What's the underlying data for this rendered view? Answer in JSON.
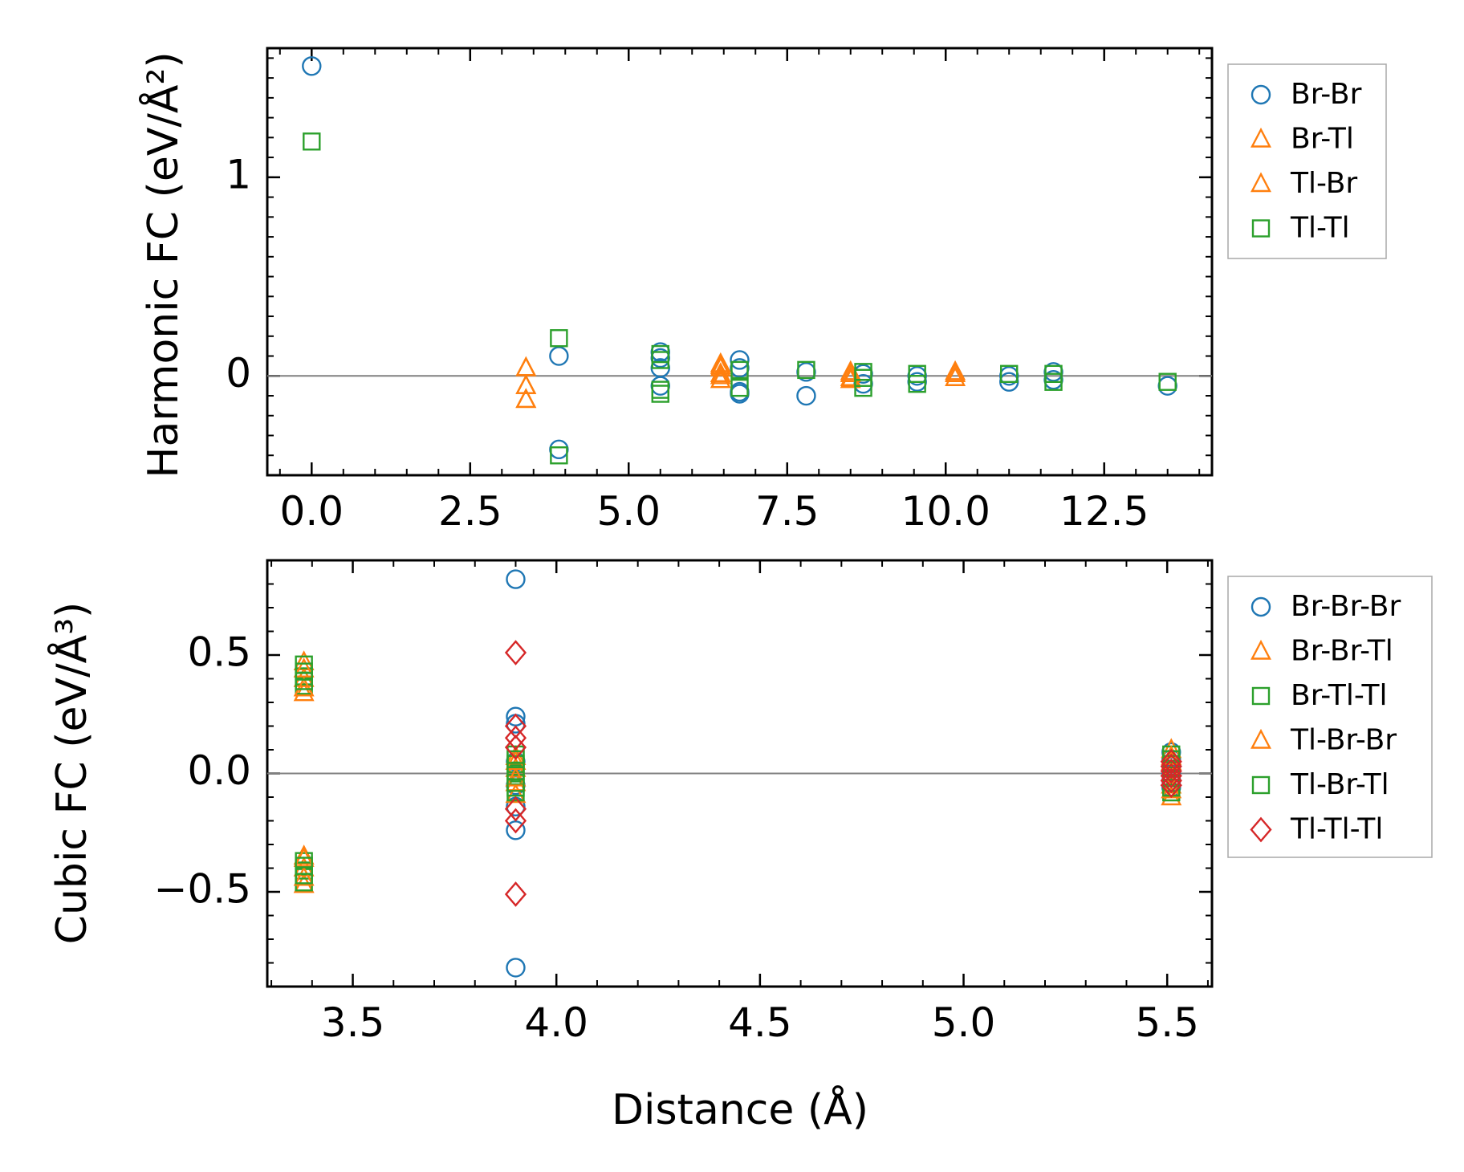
{
  "chart_data": [
    {
      "type": "scatter",
      "panel": "top",
      "ylabel": "Harmonic FC (eV/Å²)",
      "xlabel": "",
      "xlim": [
        -0.7,
        14.2
      ],
      "ylim": [
        -0.5,
        1.65
      ],
      "xticks": [
        0,
        2.5,
        5,
        7.5,
        10,
        12.5
      ],
      "xtick_labels": [
        "0.0",
        "2.5",
        "5.0",
        "7.5",
        "10.0",
        "12.5"
      ],
      "yticks": [
        0,
        1
      ],
      "ytick_labels": [
        "0",
        "1"
      ],
      "hline": 0,
      "legend_position": "outside-right",
      "series": [
        {
          "name": "Br-Br",
          "marker": "circle",
          "color": "#1f77b4",
          "points": [
            [
              0,
              1.56
            ],
            [
              3.9,
              0.1
            ],
            [
              3.9,
              -0.37
            ],
            [
              5.5,
              0.12
            ],
            [
              5.5,
              0.09
            ],
            [
              5.5,
              0.04
            ],
            [
              5.5,
              -0.05
            ],
            [
              6.75,
              0.08
            ],
            [
              6.75,
              0.04
            ],
            [
              6.75,
              -0.08
            ],
            [
              6.75,
              -0.09
            ],
            [
              7.8,
              0.02
            ],
            [
              7.8,
              -0.1
            ],
            [
              8.7,
              0.01
            ],
            [
              8.7,
              -0.04
            ],
            [
              9.55,
              0.0
            ],
            [
              9.55,
              -0.03
            ],
            [
              11.0,
              0.0
            ],
            [
              11.0,
              -0.03
            ],
            [
              11.7,
              0.02
            ],
            [
              11.7,
              -0.02
            ],
            [
              13.5,
              -0.05
            ]
          ]
        },
        {
          "name": "Br-Tl",
          "marker": "triangle",
          "color": "#ff7f0e",
          "points": [
            [
              3.38,
              0.04
            ],
            [
              3.38,
              -0.05
            ],
            [
              3.38,
              -0.12
            ],
            [
              6.45,
              0.06
            ],
            [
              6.45,
              0.04
            ],
            [
              6.45,
              0.0
            ],
            [
              6.45,
              -0.02
            ],
            [
              8.5,
              0.02
            ],
            [
              8.5,
              -0.01
            ],
            [
              10.15,
              0.02
            ],
            [
              10.15,
              -0.01
            ]
          ]
        },
        {
          "name": "Tl-Br",
          "marker": "triangle",
          "color": "#ff7f0e",
          "points": [
            [
              3.38,
              0.04
            ],
            [
              3.38,
              -0.05
            ],
            [
              3.38,
              -0.12
            ],
            [
              6.45,
              0.05
            ],
            [
              6.45,
              0.01
            ],
            [
              8.5,
              0.01
            ],
            [
              8.5,
              -0.02
            ],
            [
              10.15,
              0.01
            ]
          ]
        },
        {
          "name": "Tl-Tl",
          "marker": "square",
          "color": "#2ca02c",
          "points": [
            [
              0,
              1.18
            ],
            [
              3.9,
              0.19
            ],
            [
              3.9,
              -0.4
            ],
            [
              5.5,
              0.11
            ],
            [
              5.5,
              0.08
            ],
            [
              5.5,
              -0.07
            ],
            [
              5.5,
              -0.09
            ],
            [
              6.75,
              0.03
            ],
            [
              6.75,
              -0.06
            ],
            [
              7.8,
              0.03
            ],
            [
              8.7,
              0.02
            ],
            [
              8.7,
              -0.01
            ],
            [
              8.7,
              -0.06
            ],
            [
              9.55,
              0.01
            ],
            [
              9.55,
              -0.04
            ],
            [
              11.0,
              0.01
            ],
            [
              11.7,
              0.01
            ],
            [
              11.7,
              -0.03
            ],
            [
              13.5,
              -0.03
            ]
          ]
        }
      ]
    },
    {
      "type": "scatter",
      "panel": "bottom",
      "ylabel": "Cubic FC (eV/Å³)",
      "xlabel": "Distance (Å)",
      "xlim": [
        3.29,
        5.61
      ],
      "ylim": [
        -0.9,
        0.9
      ],
      "xticks": [
        3.5,
        4.0,
        4.5,
        5.0,
        5.5
      ],
      "xtick_labels": [
        "3.5",
        "4.0",
        "4.5",
        "5.0",
        "5.5"
      ],
      "yticks": [
        -0.5,
        0.0,
        0.5
      ],
      "ytick_labels": [
        "−0.5",
        "0.0",
        "0.5"
      ],
      "hline": 0,
      "legend_position": "outside-right",
      "series": [
        {
          "name": "Br-Br-Br",
          "marker": "circle",
          "color": "#1f77b4",
          "points": [
            [
              3.9,
              0.82
            ],
            [
              3.9,
              0.24
            ],
            [
              3.9,
              0.21
            ],
            [
              3.9,
              0.05
            ],
            [
              3.9,
              -0.05
            ],
            [
              3.9,
              -0.14
            ],
            [
              3.9,
              -0.24
            ],
            [
              3.9,
              -0.82
            ],
            [
              5.51,
              0.09
            ],
            [
              5.51,
              0.06
            ],
            [
              5.51,
              0.03
            ],
            [
              5.51,
              0.0
            ],
            [
              5.51,
              -0.03
            ],
            [
              5.51,
              -0.06
            ]
          ]
        },
        {
          "name": "Br-Br-Tl",
          "marker": "triangle",
          "color": "#ff7f0e",
          "points": [
            [
              3.38,
              0.47
            ],
            [
              3.38,
              0.4
            ],
            [
              3.38,
              0.34
            ],
            [
              3.38,
              -0.35
            ],
            [
              3.38,
              -0.4
            ],
            [
              3.38,
              -0.47
            ],
            [
              3.9,
              0.07
            ],
            [
              3.9,
              0.02
            ],
            [
              3.9,
              -0.04
            ],
            [
              3.9,
              -0.09
            ],
            [
              5.51,
              0.1
            ],
            [
              5.51,
              0.05
            ],
            [
              5.51,
              0.0
            ],
            [
              5.51,
              -0.05
            ],
            [
              5.51,
              -0.1
            ]
          ]
        },
        {
          "name": "Br-Tl-Tl",
          "marker": "square",
          "color": "#2ca02c",
          "points": [
            [
              3.38,
              0.46
            ],
            [
              3.38,
              0.41
            ],
            [
              3.38,
              0.37
            ],
            [
              3.38,
              -0.37
            ],
            [
              3.38,
              -0.41
            ],
            [
              3.38,
              -0.46
            ],
            [
              3.9,
              0.08
            ],
            [
              3.9,
              0.04
            ],
            [
              3.9,
              0.0
            ],
            [
              3.9,
              -0.04
            ],
            [
              3.9,
              -0.08
            ],
            [
              5.51,
              0.08
            ],
            [
              5.51,
              0.04
            ],
            [
              5.51,
              -0.04
            ],
            [
              5.51,
              -0.08
            ]
          ]
        },
        {
          "name": "Tl-Br-Br",
          "marker": "triangle",
          "color": "#ff7f0e",
          "points": [
            [
              3.38,
              0.44
            ],
            [
              3.38,
              0.36
            ],
            [
              3.38,
              -0.36
            ],
            [
              3.38,
              -0.44
            ],
            [
              3.9,
              0.05
            ],
            [
              3.9,
              -0.02
            ],
            [
              5.51,
              0.07
            ],
            [
              5.51,
              -0.07
            ]
          ]
        },
        {
          "name": "Tl-Br-Tl",
          "marker": "square",
          "color": "#2ca02c",
          "points": [
            [
              3.38,
              0.43
            ],
            [
              3.38,
              0.39
            ],
            [
              3.38,
              -0.39
            ],
            [
              3.38,
              -0.43
            ],
            [
              3.9,
              0.06
            ],
            [
              3.9,
              0.01
            ],
            [
              3.9,
              -0.06
            ],
            [
              5.51,
              0.06
            ],
            [
              5.51,
              0.02
            ],
            [
              5.51,
              -0.02
            ],
            [
              5.51,
              -0.06
            ]
          ]
        },
        {
          "name": "Tl-Tl-Tl",
          "marker": "diamond",
          "color": "#d62728",
          "points": [
            [
              3.9,
              0.51
            ],
            [
              3.9,
              0.2
            ],
            [
              3.9,
              0.15
            ],
            [
              3.9,
              0.11
            ],
            [
              3.9,
              -0.15
            ],
            [
              3.9,
              -0.2
            ],
            [
              3.9,
              -0.51
            ],
            [
              5.51,
              0.05
            ],
            [
              5.51,
              0.03
            ],
            [
              5.51,
              0.01
            ],
            [
              5.51,
              -0.01
            ],
            [
              5.51,
              -0.03
            ],
            [
              5.51,
              -0.05
            ]
          ]
        }
      ]
    }
  ]
}
